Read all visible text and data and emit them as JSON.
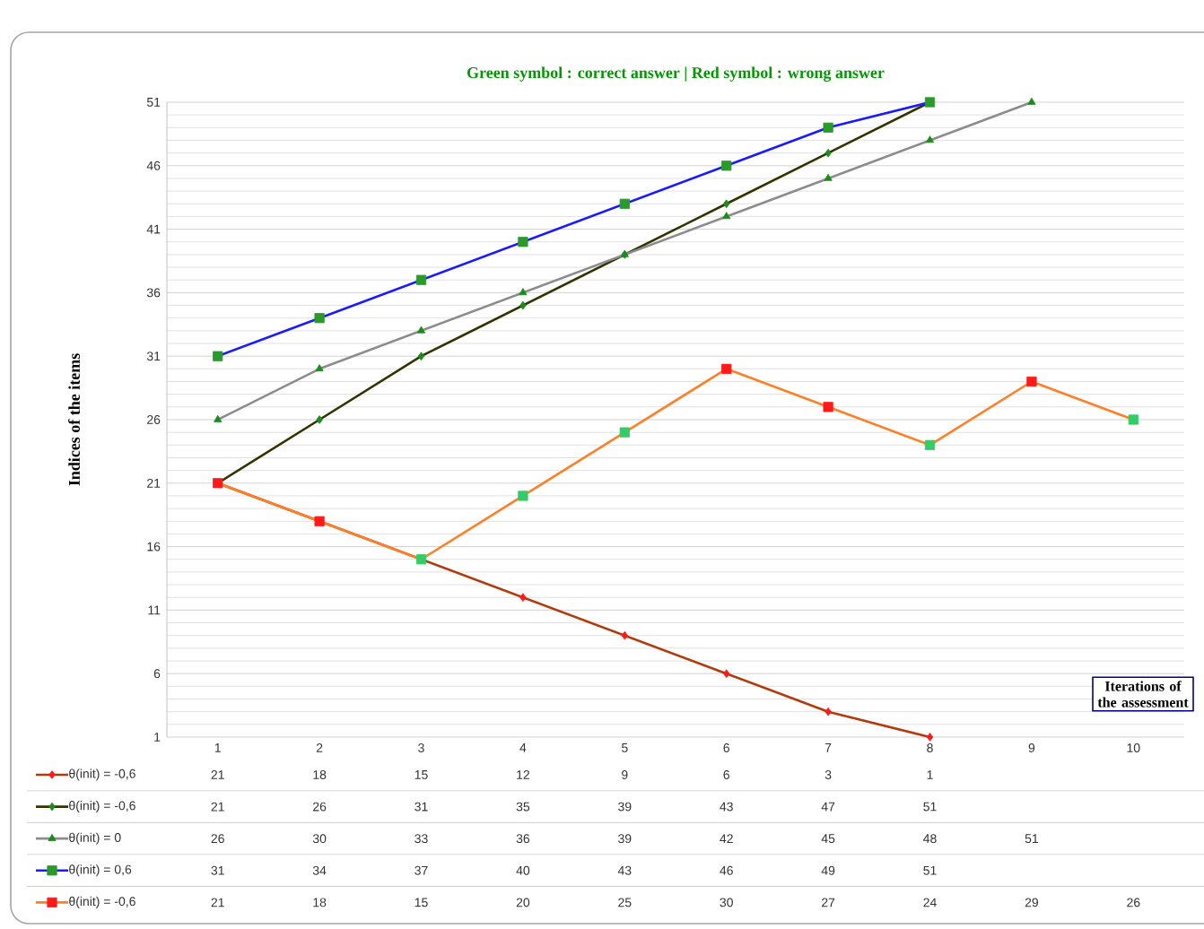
{
  "chart_data": {
    "type": "line",
    "title": "Green symbol : correct answer | Red symbol : wrong answer",
    "xlabel": "Iterations of the assessment",
    "ylabel": "Indices of the items",
    "categories": [
      "1",
      "2",
      "3",
      "4",
      "5",
      "6",
      "7",
      "8",
      "9",
      "10"
    ],
    "ylim": [
      1,
      51
    ],
    "yticks": [
      1,
      6,
      11,
      16,
      21,
      26,
      31,
      36,
      41,
      46,
      51
    ],
    "grid": "y",
    "data_labels": true,
    "legend": "bottom",
    "series": [
      {
        "name": "θ(init) = -0,6",
        "color": "#b33a0a",
        "marker": "diamond",
        "colors": [
          "#ff1a1a",
          "#ff1a1a",
          "#ff1a1a",
          "#ff1a1a",
          "#ff1a1a",
          "#ff1a1a",
          "#ff1a1a",
          "#ff1a1a",
          null,
          null
        ],
        "values": [
          21,
          18,
          15,
          12,
          9,
          6,
          3,
          1,
          null,
          null
        ]
      },
      {
        "name": "θ(init) = -0,6",
        "color": "#333300",
        "marker": "diamond",
        "colors": [
          "#1a8c1a",
          "#1a8c1a",
          "#1a8c1a",
          "#1a8c1a",
          "#1a8c1a",
          "#1a8c1a",
          "#1a8c1a",
          "#1a8c1a",
          null,
          null
        ],
        "values": [
          21,
          26,
          31,
          35,
          39,
          43,
          47,
          51,
          null,
          null
        ]
      },
      {
        "name": "θ(init) = 0",
        "color": "#8c8c8c",
        "marker": "triangle",
        "colors": [
          "#1a8c1a",
          "#1a8c1a",
          "#1a8c1a",
          "#1a8c1a",
          "#1a8c1a",
          "#1a8c1a",
          "#1a8c1a",
          "#1a8c1a",
          "#1a8c1a",
          null
        ],
        "values": [
          26,
          30,
          33,
          36,
          39,
          42,
          45,
          48,
          51,
          null
        ]
      },
      {
        "name": "θ(init) = 0,6",
        "color": "#1a1aff",
        "marker": "square",
        "colors": [
          "#2a9a2a",
          "#2a9a2a",
          "#2a9a2a",
          "#2a9a2a",
          "#2a9a2a",
          "#2a9a2a",
          "#2a9a2a",
          "#2a9a2a",
          null,
          null
        ],
        "values": [
          31,
          34,
          37,
          40,
          43,
          46,
          49,
          51,
          null,
          null
        ]
      },
      {
        "name": "θ(init) = -0,6",
        "color": "#ff7f27",
        "marker": "square",
        "colors": [
          "#ff1a1a",
          "#ff1a1a",
          "#33cc66",
          "#33cc66",
          "#33cc66",
          "#ff1a1a",
          "#ff1a1a",
          "#33cc66",
          "#ff1a1a",
          "#33cc66"
        ],
        "values": [
          21,
          18,
          15,
          20,
          25,
          30,
          27,
          24,
          29,
          26
        ]
      }
    ]
  }
}
